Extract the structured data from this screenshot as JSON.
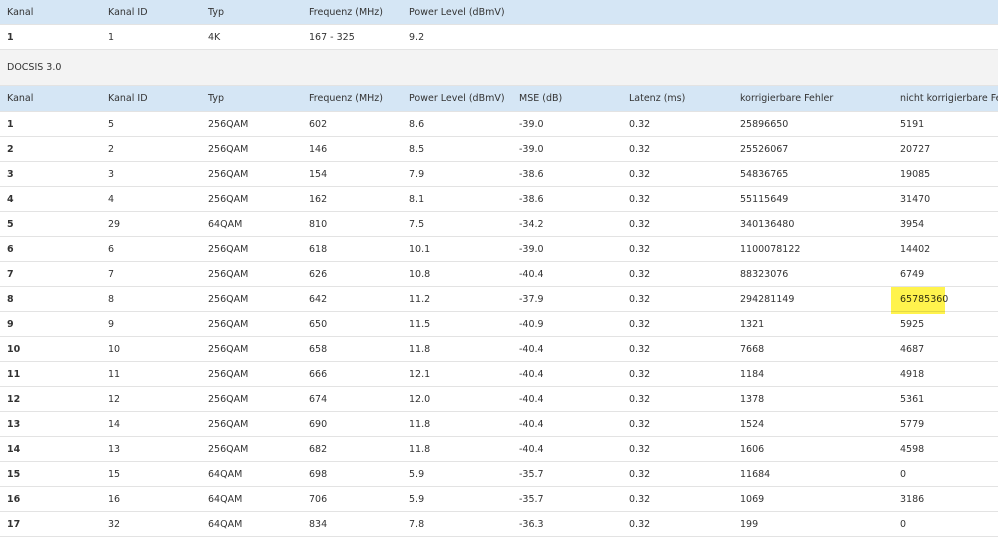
{
  "top": {
    "header": [
      "Kanal",
      "Kanal ID",
      "Typ",
      "Frequenz (MHz)",
      "Power Level (dBmV)"
    ],
    "rows": [
      [
        "1",
        "1",
        "4K",
        "167 - 325",
        "9.2"
      ]
    ]
  },
  "section": "DOCSIS 3.0",
  "table": {
    "header": [
      "Kanal",
      "Kanal ID",
      "Typ",
      "Frequenz (MHz)",
      "Power Level (dBmV)",
      "MSE (dB)",
      "Latenz (ms)",
      "korrigierbare Fehler",
      "nicht korrigierbare Fehler"
    ],
    "rows": [
      [
        "1",
        "5",
        "256QAM",
        "602",
        "8.6",
        "-39.0",
        "0.32",
        "25896650",
        "5191"
      ],
      [
        "2",
        "2",
        "256QAM",
        "146",
        "8.5",
        "-39.0",
        "0.32",
        "25526067",
        "20727"
      ],
      [
        "3",
        "3",
        "256QAM",
        "154",
        "7.9",
        "-38.6",
        "0.32",
        "54836765",
        "19085"
      ],
      [
        "4",
        "4",
        "256QAM",
        "162",
        "8.1",
        "-38.6",
        "0.32",
        "55115649",
        "31470"
      ],
      [
        "5",
        "29",
        "64QAM",
        "810",
        "7.5",
        "-34.2",
        "0.32",
        "340136480",
        "3954"
      ],
      [
        "6",
        "6",
        "256QAM",
        "618",
        "10.1",
        "-39.0",
        "0.32",
        "1100078122",
        "14402"
      ],
      [
        "7",
        "7",
        "256QAM",
        "626",
        "10.8",
        "-40.4",
        "0.32",
        "88323076",
        "6749"
      ],
      [
        "8",
        "8",
        "256QAM",
        "642",
        "11.2",
        "-37.9",
        "0.32",
        "294281149",
        "65785360"
      ],
      [
        "9",
        "9",
        "256QAM",
        "650",
        "11.5",
        "-40.9",
        "0.32",
        "1321",
        "5925"
      ],
      [
        "10",
        "10",
        "256QAM",
        "658",
        "11.8",
        "-40.4",
        "0.32",
        "7668",
        "4687"
      ],
      [
        "11",
        "11",
        "256QAM",
        "666",
        "12.1",
        "-40.4",
        "0.32",
        "1184",
        "4918"
      ],
      [
        "12",
        "12",
        "256QAM",
        "674",
        "12.0",
        "-40.4",
        "0.32",
        "1378",
        "5361"
      ],
      [
        "13",
        "14",
        "256QAM",
        "690",
        "11.8",
        "-40.4",
        "0.32",
        "1524",
        "5779"
      ],
      [
        "14",
        "13",
        "256QAM",
        "682",
        "11.8",
        "-40.4",
        "0.32",
        "1606",
        "4598"
      ],
      [
        "15",
        "15",
        "64QAM",
        "698",
        "5.9",
        "-35.7",
        "0.32",
        "11684",
        "0"
      ],
      [
        "16",
        "16",
        "64QAM",
        "706",
        "5.9",
        "-35.7",
        "0.32",
        "1069",
        "3186"
      ],
      [
        "17",
        "32",
        "64QAM",
        "834",
        "7.8",
        "-36.3",
        "0.32",
        "199",
        "0"
      ]
    ]
  }
}
